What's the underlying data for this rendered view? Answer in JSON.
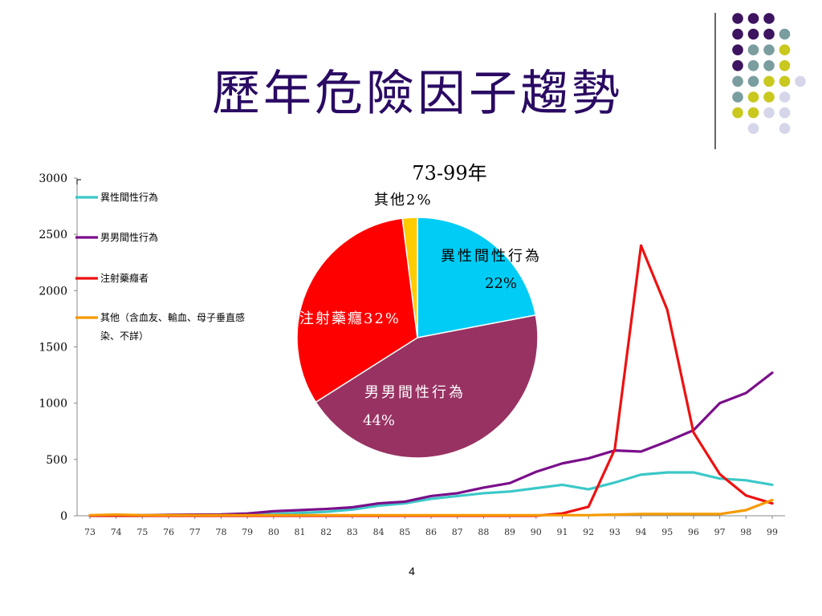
{
  "slide": {
    "title": "歷年危險因子趨勢",
    "page_number": "4"
  },
  "decoration": {
    "dot_colors": [
      "#3d1460",
      "#7a9ea0",
      "#c9c81e",
      "#d6d6ea"
    ]
  },
  "chart_data": [
    {
      "type": "line",
      "x": [
        "73",
        "74",
        "75",
        "76",
        "77",
        "78",
        "79",
        "80",
        "81",
        "82",
        "83",
        "84",
        "85",
        "86",
        "87",
        "88",
        "89",
        "90",
        "91",
        "92",
        "93",
        "94",
        "95",
        "96",
        "97",
        "98",
        "99"
      ],
      "ylim": [
        0,
        3000
      ],
      "yticks": [
        "0",
        "500",
        "1000",
        "1500",
        "2000",
        "2500",
        "3000"
      ],
      "grid": false,
      "legend_position": "top-left",
      "series": [
        {
          "name": "異性間性行為",
          "color": "#3cc8c8",
          "values": [
            0,
            0,
            0,
            2,
            5,
            5,
            8,
            15,
            25,
            35,
            55,
            90,
            110,
            150,
            175,
            200,
            215,
            245,
            275,
            235,
            295,
            365,
            385,
            385,
            330,
            315,
            275
          ]
        },
        {
          "name": "男男間性行為",
          "color": "#7a0f8a",
          "values": [
            2,
            5,
            5,
            8,
            10,
            12,
            20,
            40,
            50,
            60,
            75,
            110,
            125,
            175,
            200,
            250,
            290,
            390,
            465,
            510,
            580,
            570,
            660,
            760,
            1000,
            1090,
            1270
          ]
        },
        {
          "name": "注射藥癮者",
          "color": "#ee1111",
          "values": [
            0,
            0,
            0,
            0,
            0,
            0,
            0,
            0,
            0,
            0,
            0,
            0,
            0,
            0,
            0,
            0,
            0,
            0,
            20,
            80,
            590,
            2400,
            1830,
            740,
            370,
            180,
            110
          ]
        },
        {
          "name": "其他（含血友、輸血、母子垂直感染、不詳）",
          "color": "#f59a00",
          "values": [
            5,
            10,
            5,
            5,
            5,
            5,
            5,
            5,
            5,
            5,
            5,
            5,
            5,
            5,
            5,
            5,
            5,
            5,
            5,
            5,
            10,
            15,
            15,
            15,
            15,
            50,
            140
          ]
        }
      ]
    },
    {
      "type": "pie",
      "title": "73-99年",
      "slices": [
        {
          "label": "異性間性行為",
          "pct_label": "22%",
          "value": 22,
          "color": "#00ccf5"
        },
        {
          "label": "男男間性行為",
          "pct_label": "44%",
          "value": 44,
          "color": "#983262"
        },
        {
          "label": "注射藥癮",
          "pct_label": "32%",
          "value": 32,
          "color": "#ff0000"
        },
        {
          "label": "其他",
          "pct_label": "2%",
          "value": 2,
          "color": "#ffcc00"
        }
      ]
    }
  ]
}
